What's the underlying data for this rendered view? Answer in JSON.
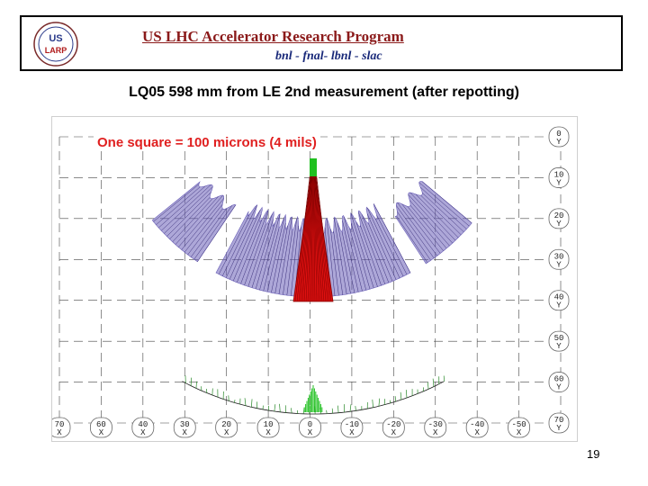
{
  "header": {
    "logo_text": [
      "US",
      "LARP"
    ],
    "program_title": "US LHC Accelerator Research Program",
    "labs": "bnl - fnal- lbnl - slac"
  },
  "slide": {
    "title": "LQ05  598 mm from LE 2nd measurement (after repotting)",
    "page_number": "19"
  },
  "plot": {
    "scale_note": "One square = 100 microns (4 mils)",
    "right_ticks": [
      {
        "num": "0",
        "axis": "Y"
      },
      {
        "num": "10",
        "axis": "Y"
      },
      {
        "num": "20",
        "axis": "Y"
      },
      {
        "num": "30",
        "axis": "Y"
      },
      {
        "num": "40",
        "axis": "Y"
      },
      {
        "num": "50",
        "axis": "Y"
      },
      {
        "num": "60",
        "axis": "Y"
      },
      {
        "num": "70",
        "axis": "Y"
      }
    ],
    "bottom_ticks": [
      {
        "num": "70",
        "axis": "X"
      },
      {
        "num": "60",
        "axis": "X"
      },
      {
        "num": "40",
        "axis": "X"
      },
      {
        "num": "30",
        "axis": "X"
      },
      {
        "num": "20",
        "axis": "X"
      },
      {
        "num": "10",
        "axis": "X"
      },
      {
        "num": "0",
        "axis": "X"
      },
      {
        "num": "-10",
        "axis": "X"
      },
      {
        "num": "-20",
        "axis": "X"
      },
      {
        "num": "-30",
        "axis": "X"
      },
      {
        "num": "-40",
        "axis": "X"
      },
      {
        "num": "-50",
        "axis": "X"
      }
    ],
    "colors": {
      "left_profile": "#6a5fb8",
      "center_peak": "#e01010",
      "peak_tip": "#20c020",
      "reference_arc": "#2a8a2a",
      "grid": "#444444"
    }
  }
}
